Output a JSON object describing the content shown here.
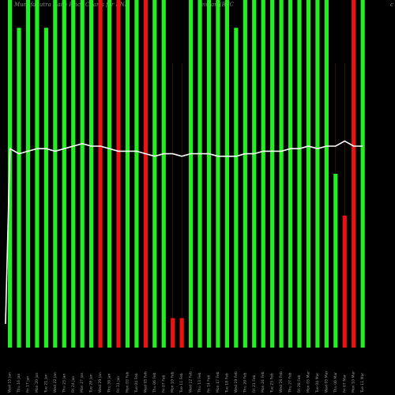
{
  "header": {
    "title": "MunafaSutra Daily Price Charts for KNH",
    "title2": "eiman (BTC",
    "corner": "c"
  },
  "colors": {
    "background": "#000000",
    "up": "#22ee22",
    "down": "#ee1111",
    "line": "#ffffff",
    "grid": "#552200",
    "label": "#9a9a9a"
  },
  "chart_data": {
    "type": "bar",
    "title": "MunafaSutra Daily Price Charts for KNH",
    "categories": [
      "Wed 15 Jan",
      "Thu 16 Jan",
      "Fri 17 Jan",
      "Mon 20 Jan",
      "Tue 21 Jan",
      "Wed 22 Jan",
      "Thu 23 Jan",
      "Fri 24 Jan",
      "Mon 27 Jan",
      "Tue 28 Jan",
      "Wed 29 Jan",
      "Thu 30 Jan",
      "Fri 31 Jan",
      "Mon 03 Feb",
      "Tue 04 Feb",
      "Wed 05 Feb",
      "Thu 06 Feb",
      "Fri 07 Feb",
      "Mon 10 Feb",
      "Tue 11 Feb",
      "Wed 12 Feb",
      "Thu 13 Feb",
      "Fri 14 Feb",
      "Mon 17 Feb",
      "Tue 18 Feb",
      "Wed 19 Feb",
      "Thu 20 Feb",
      "Fri 21 Feb",
      "Mon 24 Feb",
      "Tue 25 Feb",
      "Wed 26 Feb",
      "Thu 27 Feb",
      "Fri 28 Feb",
      "Mon 03 Mar",
      "Tue 04 Mar",
      "Wed 05 Mar",
      "Thu 06 Mar",
      "Fri 07 Mar",
      "Mon 10 Mar",
      "Tue 11 Mar"
    ],
    "volume": [
      100,
      92,
      100,
      100,
      92,
      100,
      100,
      100,
      100,
      100,
      100,
      100,
      100,
      100,
      100,
      100,
      100,
      100,
      8.5,
      8.5,
      100,
      100,
      100,
      100,
      100,
      92,
      100,
      100,
      100,
      100,
      100,
      100,
      100,
      100,
      100,
      100,
      50,
      38,
      100,
      100
    ],
    "direction": [
      "up",
      "up",
      "up",
      "up",
      "up",
      "up",
      "up",
      "up",
      "up",
      "up",
      "down",
      "up",
      "down",
      "up",
      "up",
      "down",
      "up",
      "up",
      "down",
      "down",
      "up",
      "up",
      "up",
      "up",
      "up",
      "up",
      "up",
      "up",
      "up",
      "up",
      "up",
      "up",
      "up",
      "up",
      "up",
      "up",
      "up",
      "down",
      "down",
      "up"
    ],
    "price_line": [
      37,
      35,
      36,
      37,
      37,
      36,
      37,
      38,
      39,
      38,
      38,
      37,
      36,
      36,
      36,
      35,
      34,
      35,
      35,
      34,
      35,
      35,
      35,
      34,
      34,
      34,
      35,
      35,
      36,
      36,
      36,
      37,
      37,
      38,
      37,
      38,
      38,
      40,
      38,
      38
    ],
    "ylim": [
      0,
      100
    ]
  }
}
